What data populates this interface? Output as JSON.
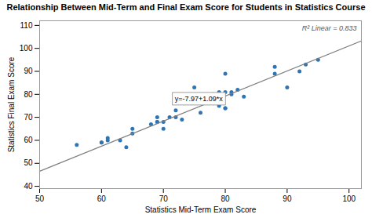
{
  "chart_data": {
    "type": "scatter",
    "title": "Relationship Between Mid-Term and Final Exam Score for Students in Statistics Course",
    "xlabel": "Statistics Mid-Term Exam Score",
    "ylabel": "Statistics Final Exam Score",
    "xlim": [
      50,
      102
    ],
    "ylim": [
      39,
      112
    ],
    "xticks": [
      50,
      60,
      70,
      80,
      90,
      100
    ],
    "yticks": [
      40,
      50,
      60,
      70,
      80,
      90,
      100,
      110
    ],
    "grid": false,
    "series": [
      {
        "type": "scatter",
        "color": "#2e75b6",
        "x": [
          56,
          60,
          60,
          61,
          61,
          63,
          64,
          65,
          65,
          68,
          69,
          69,
          69,
          70,
          70,
          71,
          72,
          72,
          73,
          75,
          76,
          78,
          79,
          79,
          79,
          80,
          80,
          80,
          80,
          81,
          81,
          82,
          83,
          88,
          88,
          90,
          92,
          93,
          95
        ],
        "values": [
          58,
          59,
          59,
          60,
          61,
          60,
          57,
          63,
          65,
          67,
          68,
          68,
          70,
          68,
          65,
          70,
          73,
          70,
          69,
          83,
          72,
          80,
          79,
          81,
          75,
          89,
          81,
          74,
          74,
          81,
          80,
          82,
          79,
          92,
          89,
          83,
          90,
          93,
          95
        ]
      },
      {
        "type": "line",
        "color": "#7f7f7f",
        "x": [
          50,
          102
        ],
        "values": [
          46.53,
          103.21
        ]
      }
    ],
    "annotations": [
      "R² Linear = 0.833",
      "y=-7.97+1.09*x"
    ]
  }
}
